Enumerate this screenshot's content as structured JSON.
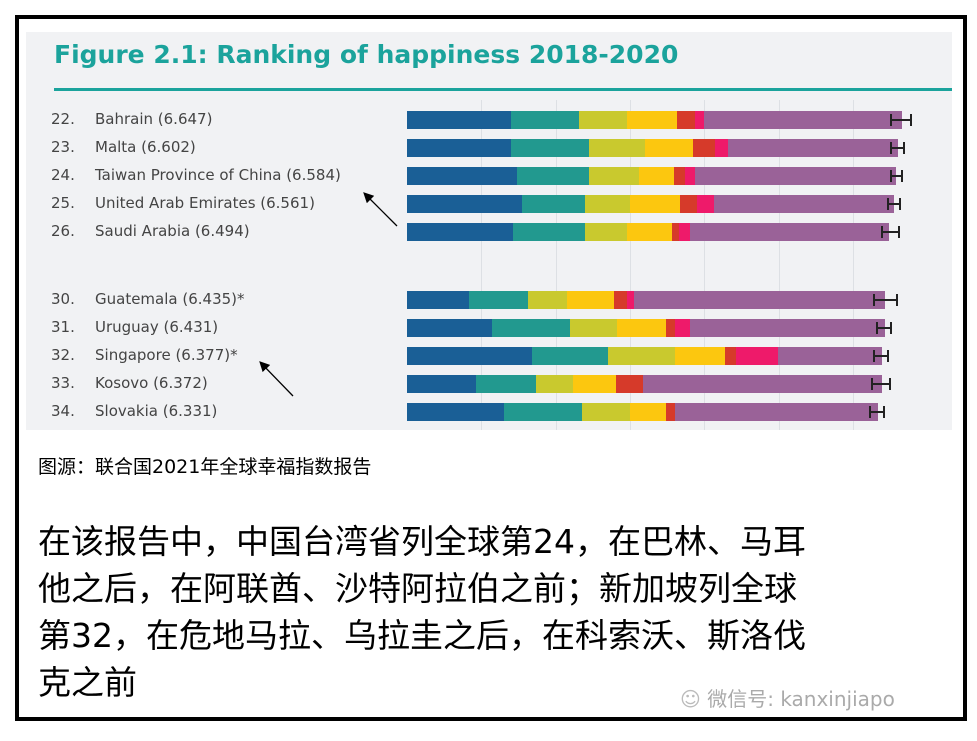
{
  "chart_data": {
    "type": "bar",
    "orientation": "horizontal",
    "stacked": true,
    "title": "Figure 2.1: Ranking of happiness 2018-2020",
    "xlim": [
      0,
      7
    ],
    "grid": true,
    "segment_colors": [
      "#1a5f96",
      "#22998f",
      "#c9c92e",
      "#fcc70f",
      "#d63a2a",
      "#ee1a6a",
      "#9a6298"
    ],
    "groups": [
      {
        "rows": [
          {
            "rank": "22.",
            "label": "Bahrain (6.647)",
            "score": 6.647,
            "segments": [
              1.4,
              0.91,
              0.65,
              0.67,
              0.25,
              0.12,
              2.65
            ],
            "ci": [
              6.51,
              6.79
            ]
          },
          {
            "rank": "23.",
            "label": "Malta (6.602)",
            "score": 6.602,
            "segments": [
              1.4,
              1.05,
              0.75,
              0.65,
              0.3,
              0.17,
              2.28
            ],
            "ci": [
              6.51,
              6.69
            ]
          },
          {
            "rank": "24.",
            "label": "Taiwan Province of China (6.584)",
            "score": 6.584,
            "segments": [
              1.48,
              0.97,
              0.67,
              0.48,
              0.14,
              0.13,
              2.7
            ],
            "ci": [
              6.51,
              6.66
            ]
          },
          {
            "rank": "25.",
            "label": "United Arab Emirates (6.561)",
            "score": 6.561,
            "segments": [
              1.55,
              0.85,
              0.6,
              0.68,
              0.22,
              0.23,
              2.42
            ],
            "ci": [
              6.48,
              6.63
            ]
          },
          {
            "rank": "26.",
            "label": "Saudi Arabia (6.494)",
            "score": 6.494,
            "segments": [
              1.43,
              0.97,
              0.56,
              0.6,
              0.1,
              0.15,
              2.67
            ],
            "ci": [
              6.39,
              6.62
            ]
          }
        ]
      },
      {
        "rows": [
          {
            "rank": "30.",
            "label": "Guatemala (6.435)*",
            "score": 6.435,
            "segments": [
              0.83,
              0.8,
              0.53,
              0.62,
              0.18,
              0.1,
              3.37
            ],
            "ci": [
              6.28,
              6.6
            ]
          },
          {
            "rank": "31.",
            "label": "Uruguay (6.431)",
            "score": 6.431,
            "segments": [
              1.15,
              1.05,
              0.62,
              0.66,
              0.13,
              0.2,
              2.62
            ],
            "ci": [
              6.33,
              6.52
            ]
          },
          {
            "rank": "32.",
            "label": "Singapore (6.377)*",
            "score": 6.377,
            "segments": [
              1.68,
              1.02,
              0.91,
              0.67,
              0.15,
              0.56,
              1.39
            ],
            "ci": [
              6.28,
              6.47
            ]
          },
          {
            "rank": "33.",
            "label": "Kosovo (6.372)",
            "score": 6.372,
            "segments": [
              0.93,
              0.8,
              0.5,
              0.58,
              0.37,
              0.0,
              3.2
            ],
            "ci": [
              6.26,
              6.5
            ]
          },
          {
            "rank": "34.",
            "label": "Slovakia (6.331)",
            "score": 6.331,
            "segments": [
              1.3,
              1.05,
              0.65,
              0.48,
              0.13,
              0.0,
              2.72
            ],
            "ci": [
              6.23,
              6.42
            ]
          }
        ]
      }
    ]
  },
  "source": "图源：联合国2021年全球幸福指数报告",
  "body_lines": [
    "在该报告中，中国台湾省列全球第24，在巴林、马耳",
    "他之后，在阿联酋、沙特阿拉伯之前；新加坡列全球",
    "第32，在危地马拉、乌拉圭之后，在科索沃、斯洛伐",
    "克之前"
  ],
  "watermark": "微信号: kanxinjiapo"
}
